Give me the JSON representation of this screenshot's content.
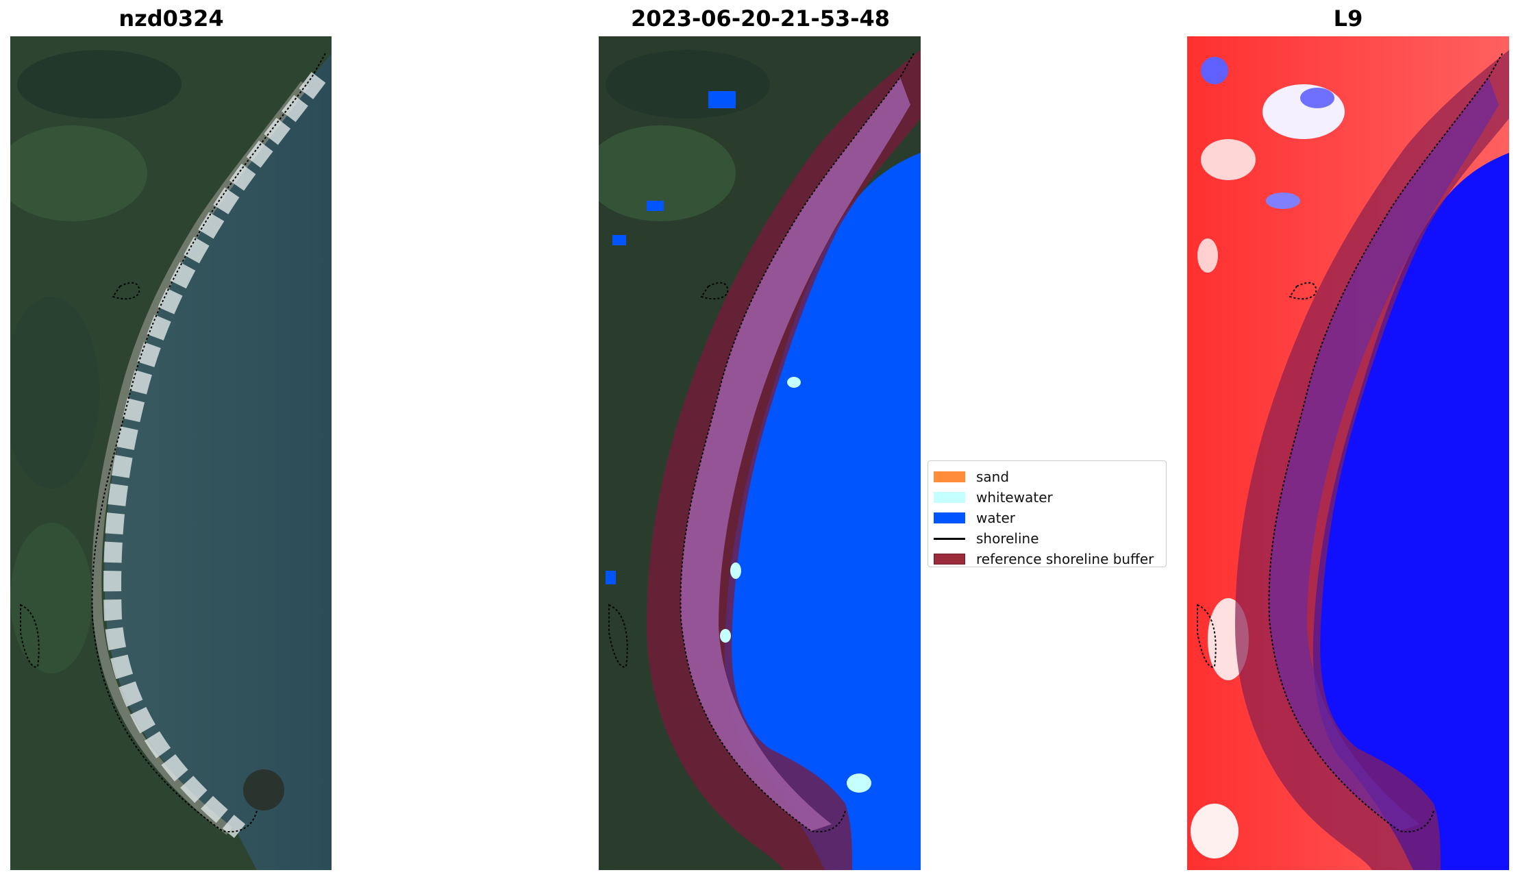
{
  "panels": [
    {
      "title": "nzd0324"
    },
    {
      "title": "2023-06-20-21-53-48"
    },
    {
      "title": "L9"
    }
  ],
  "legend": {
    "items": [
      {
        "label": "sand",
        "color": "#ff8c3a"
      },
      {
        "label": "whitewater",
        "color": "#c6ffff"
      },
      {
        "label": "water",
        "color": "#0055ff"
      },
      {
        "label": "shoreline",
        "color": "#000000"
      },
      {
        "label": "reference shoreline buffer",
        "color": "#9b2a3a"
      }
    ]
  }
}
